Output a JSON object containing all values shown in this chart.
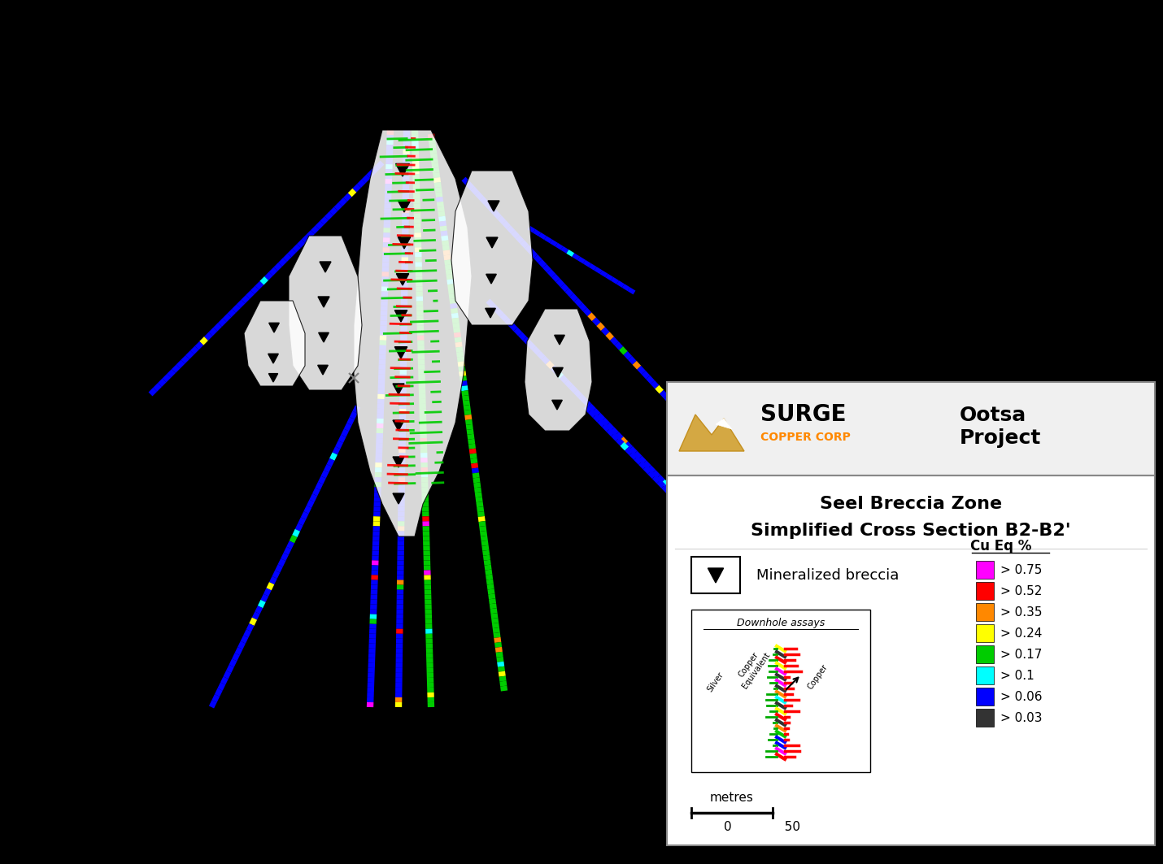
{
  "background_color": "#000000",
  "legend_box_color": "#ffffff",
  "legend_box_edge": "#888888",
  "title_line1": "Seel Breccia Zone",
  "title_line2": "Simplified Cross Section B2-B2'",
  "company_name": "SURGE",
  "company_sub": "COPPER CORP",
  "project_name": "Ootsa\nProject",
  "mineralized_breccia_label": "Mineralized breccia",
  "downhole_assays_label": "Downhole assays",
  "cu_eq_label": "Cu Eq %",
  "cu_eq_levels": [
    "> 0.75",
    "> 0.52",
    "> 0.35",
    "> 0.24",
    "> 0.17",
    "> 0.1",
    "> 0.06",
    "> 0.03"
  ],
  "cu_eq_colors": [
    "#ff00ff",
    "#ff0000",
    "#ff8800",
    "#ffff00",
    "#00cc00",
    "#00ffff",
    "#0000ff",
    "#333333"
  ],
  "scale_bar_label": "metres",
  "scale_bar_value": 50,
  "xlim": [
    0,
    1430
  ],
  "ylim": [
    0,
    1063
  ]
}
